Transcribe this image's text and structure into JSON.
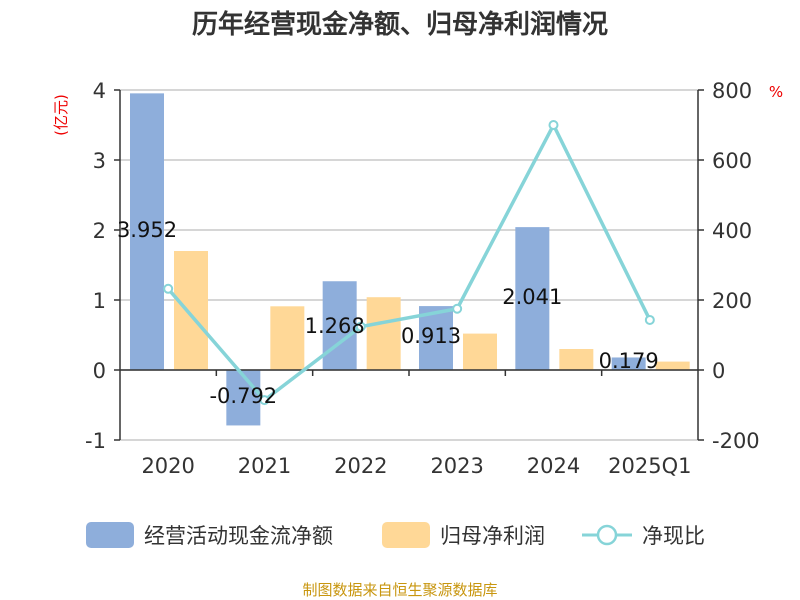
{
  "chart_data": {
    "type": "bar",
    "title": "历年经营现金净额、归母净利润情况",
    "categories": [
      "2020",
      "2021",
      "2022",
      "2023",
      "2024",
      "2025Q1"
    ],
    "y_left": {
      "label": "(亿元)",
      "ylim": [
        -1,
        4
      ],
      "ticks": [
        "-1",
        "0",
        "1",
        "2",
        "3",
        "4"
      ]
    },
    "y_right": {
      "label": "%",
      "ylim": [
        -200,
        800
      ],
      "ticks": [
        "-200",
        "0",
        "200",
        "400",
        "600",
        "800"
      ]
    },
    "grid": true,
    "legend_position": "bottom",
    "series": [
      {
        "name": "经营活动现金流净额",
        "type": "bar",
        "axis": "left",
        "color": "#8eaedb",
        "values": [
          3.952,
          -0.792,
          1.268,
          0.913,
          2.041,
          0.179
        ],
        "labels": [
          "3.952",
          "-0.792",
          "1.268",
          "0.913",
          "2.041",
          "0.179"
        ]
      },
      {
        "name": "归母净利润",
        "type": "bar",
        "axis": "left",
        "color": "#ffd897",
        "values": [
          1.7,
          0.91,
          1.04,
          0.52,
          0.3,
          0.12
        ]
      },
      {
        "name": "净现比",
        "type": "line",
        "axis": "right",
        "color": "#86d4d8",
        "values": [
          232,
          -86,
          124,
          175,
          700,
          143
        ]
      }
    ],
    "source": "制图数据来自恒生聚源数据库"
  }
}
